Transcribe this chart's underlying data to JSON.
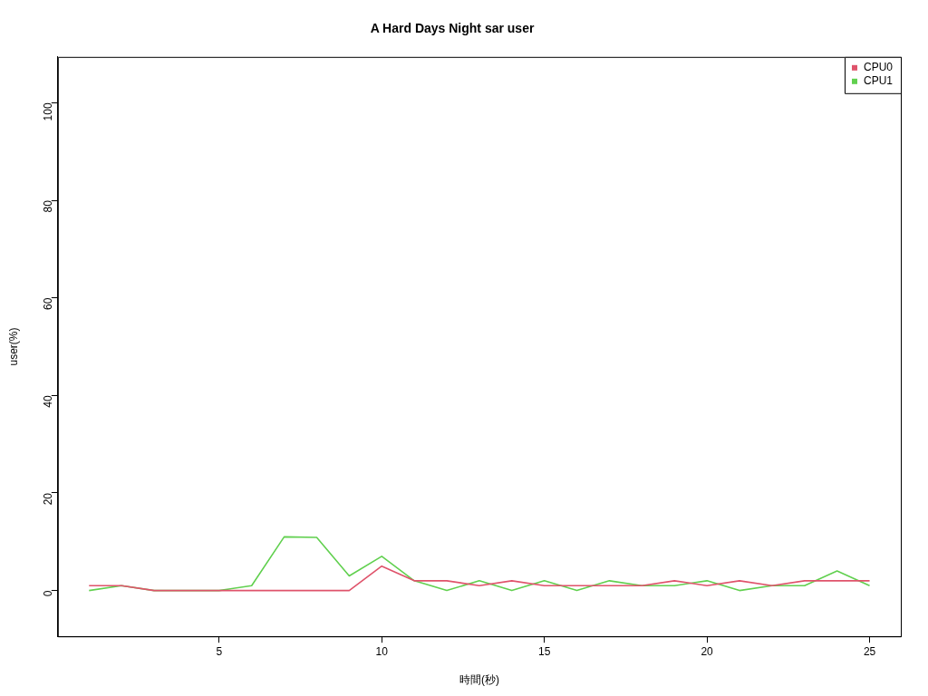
{
  "chart_data": {
    "type": "line",
    "title": "A Hard Days Night sar user",
    "xlabel": "時間(秒)",
    "ylabel": "user(%)",
    "x": [
      1,
      2,
      3,
      4,
      5,
      6,
      7,
      8,
      9,
      10,
      11,
      12,
      13,
      14,
      15,
      16,
      17,
      18,
      19,
      20,
      21,
      22,
      23,
      24,
      25
    ],
    "series": [
      {
        "name": "CPU0",
        "color": "#df536b",
        "values": [
          1,
          1,
          0,
          0,
          0,
          0,
          0,
          0,
          0,
          5,
          2,
          2,
          1,
          2,
          1,
          1,
          1,
          1,
          2,
          1,
          2,
          1,
          2,
          2,
          2
        ]
      },
      {
        "name": "CPU1",
        "color": "#61d04f",
        "values": [
          0,
          1,
          0,
          0,
          0,
          1,
          11,
          10.9,
          3,
          7,
          2,
          0,
          2,
          0,
          2,
          0,
          2,
          1,
          1,
          2,
          0,
          1,
          1,
          4,
          1
        ]
      }
    ],
    "xlim": [
      0.04,
      25.96
    ],
    "xticks": [
      5,
      10,
      15,
      20,
      25
    ],
    "ylim": [
      -9.4,
      109.4
    ],
    "yticks": [
      0,
      20,
      40,
      60,
      80,
      100
    ],
    "grid": false,
    "legend": "top right",
    "marker": "none",
    "line_style": "solid"
  }
}
